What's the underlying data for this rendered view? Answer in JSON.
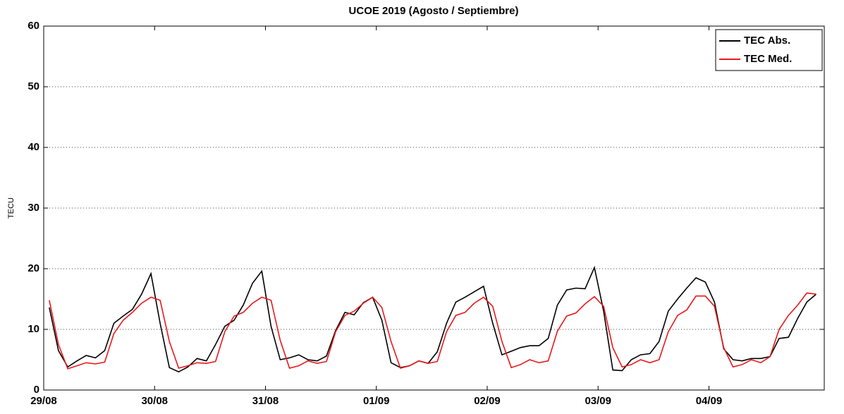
{
  "chart_data": {
    "type": "line",
    "title": "UCOE 2019 (Agosto / Septiembre)",
    "ylabel": "TECU",
    "x": [
      0.05,
      0.133,
      0.217,
      0.3,
      0.383,
      0.467,
      0.55,
      0.633,
      0.717,
      0.8,
      0.883,
      0.967,
      1.05,
      1.133,
      1.217,
      1.3,
      1.383,
      1.467,
      1.55,
      1.633,
      1.717,
      1.8,
      1.883,
      1.967,
      2.05,
      2.133,
      2.217,
      2.3,
      2.383,
      2.467,
      2.55,
      2.633,
      2.717,
      2.8,
      2.883,
      2.967,
      3.05,
      3.133,
      3.217,
      3.3,
      3.383,
      3.467,
      3.55,
      3.633,
      3.717,
      3.8,
      3.883,
      3.967,
      4.05,
      4.133,
      4.217,
      4.3,
      4.383,
      4.467,
      4.55,
      4.633,
      4.717,
      4.8,
      4.883,
      4.967,
      5.05,
      5.133,
      5.217,
      5.3,
      5.383,
      5.467,
      5.55,
      5.633,
      5.717,
      5.8,
      5.883,
      5.967,
      6.05,
      6.133,
      6.217,
      6.3,
      6.383,
      6.467,
      6.55,
      6.633,
      6.717,
      6.8,
      6.883,
      6.967
    ],
    "series": [
      {
        "name": "TEC Abs.",
        "color": "#000000",
        "values": [
          13.6,
          6.5,
          3.8,
          4.8,
          5.7,
          5.3,
          6.5,
          11,
          12.2,
          13.3,
          15.8,
          19.2,
          11,
          3.7,
          3.0,
          3.8,
          5.2,
          4.8,
          7.5,
          10.5,
          11.5,
          14,
          17.6,
          19.6,
          10.5,
          5,
          5.3,
          5.8,
          5,
          4.8,
          5.6,
          9.8,
          12.8,
          12.4,
          14.4,
          15.3,
          11.5,
          4.5,
          3.7,
          4,
          4.8,
          4.4,
          6.3,
          11,
          14.5,
          15.3,
          16.2,
          17.1,
          11,
          5.8,
          6.4,
          7,
          7.3,
          7.3,
          8.5,
          14,
          16.5,
          16.8,
          16.7,
          20.2,
          13,
          3.3,
          3.2,
          5,
          5.8,
          6,
          8,
          13,
          15,
          16.8,
          18.5,
          17.8,
          14.5,
          6.8,
          5,
          4.8,
          5.2,
          5.2,
          5.5,
          8.5,
          8.7,
          11.8,
          14.5,
          15.8
        ]
      },
      {
        "name": "TEC Med.",
        "color": "#e8191c",
        "values": [
          14.8,
          7.5,
          3.5,
          4,
          4.5,
          4.3,
          4.6,
          9.3,
          11.5,
          12.8,
          14.3,
          15.3,
          14.8,
          8,
          3.6,
          4,
          4.5,
          4.4,
          4.7,
          9.6,
          12.2,
          12.8,
          14.3,
          15.3,
          14.8,
          8.2,
          3.6,
          4,
          4.8,
          4.4,
          4.7,
          9.6,
          12.3,
          13,
          14.3,
          15.3,
          13.6,
          8,
          3.6,
          4,
          4.8,
          4.4,
          4.7,
          9.6,
          12.3,
          12.8,
          14.3,
          15.3,
          13.8,
          8,
          3.7,
          4.2,
          5,
          4.5,
          4.8,
          9.7,
          12.2,
          12.7,
          14.2,
          15.4,
          13.8,
          7,
          3.8,
          4.2,
          5,
          4.5,
          5,
          9.6,
          12.3,
          13.2,
          15.5,
          15.5,
          13.8,
          7,
          3.8,
          4.2,
          5,
          4.5,
          5.5,
          10,
          12.3,
          14,
          16,
          15.8
        ]
      }
    ],
    "xlim": [
      0,
      7.04
    ],
    "xticks": [
      {
        "value": 0,
        "label": "29/08"
      },
      {
        "value": 1,
        "label": "30/08"
      },
      {
        "value": 2,
        "label": "31/08"
      },
      {
        "value": 3,
        "label": "01/09"
      },
      {
        "value": 4,
        "label": "02/09"
      },
      {
        "value": 5,
        "label": "03/09"
      },
      {
        "value": 6,
        "label": "04/09"
      }
    ],
    "ylim": [
      0,
      60
    ],
    "yticks": [
      0,
      10,
      20,
      30,
      40,
      50,
      60
    ],
    "grid": true,
    "legend": "upper right"
  }
}
